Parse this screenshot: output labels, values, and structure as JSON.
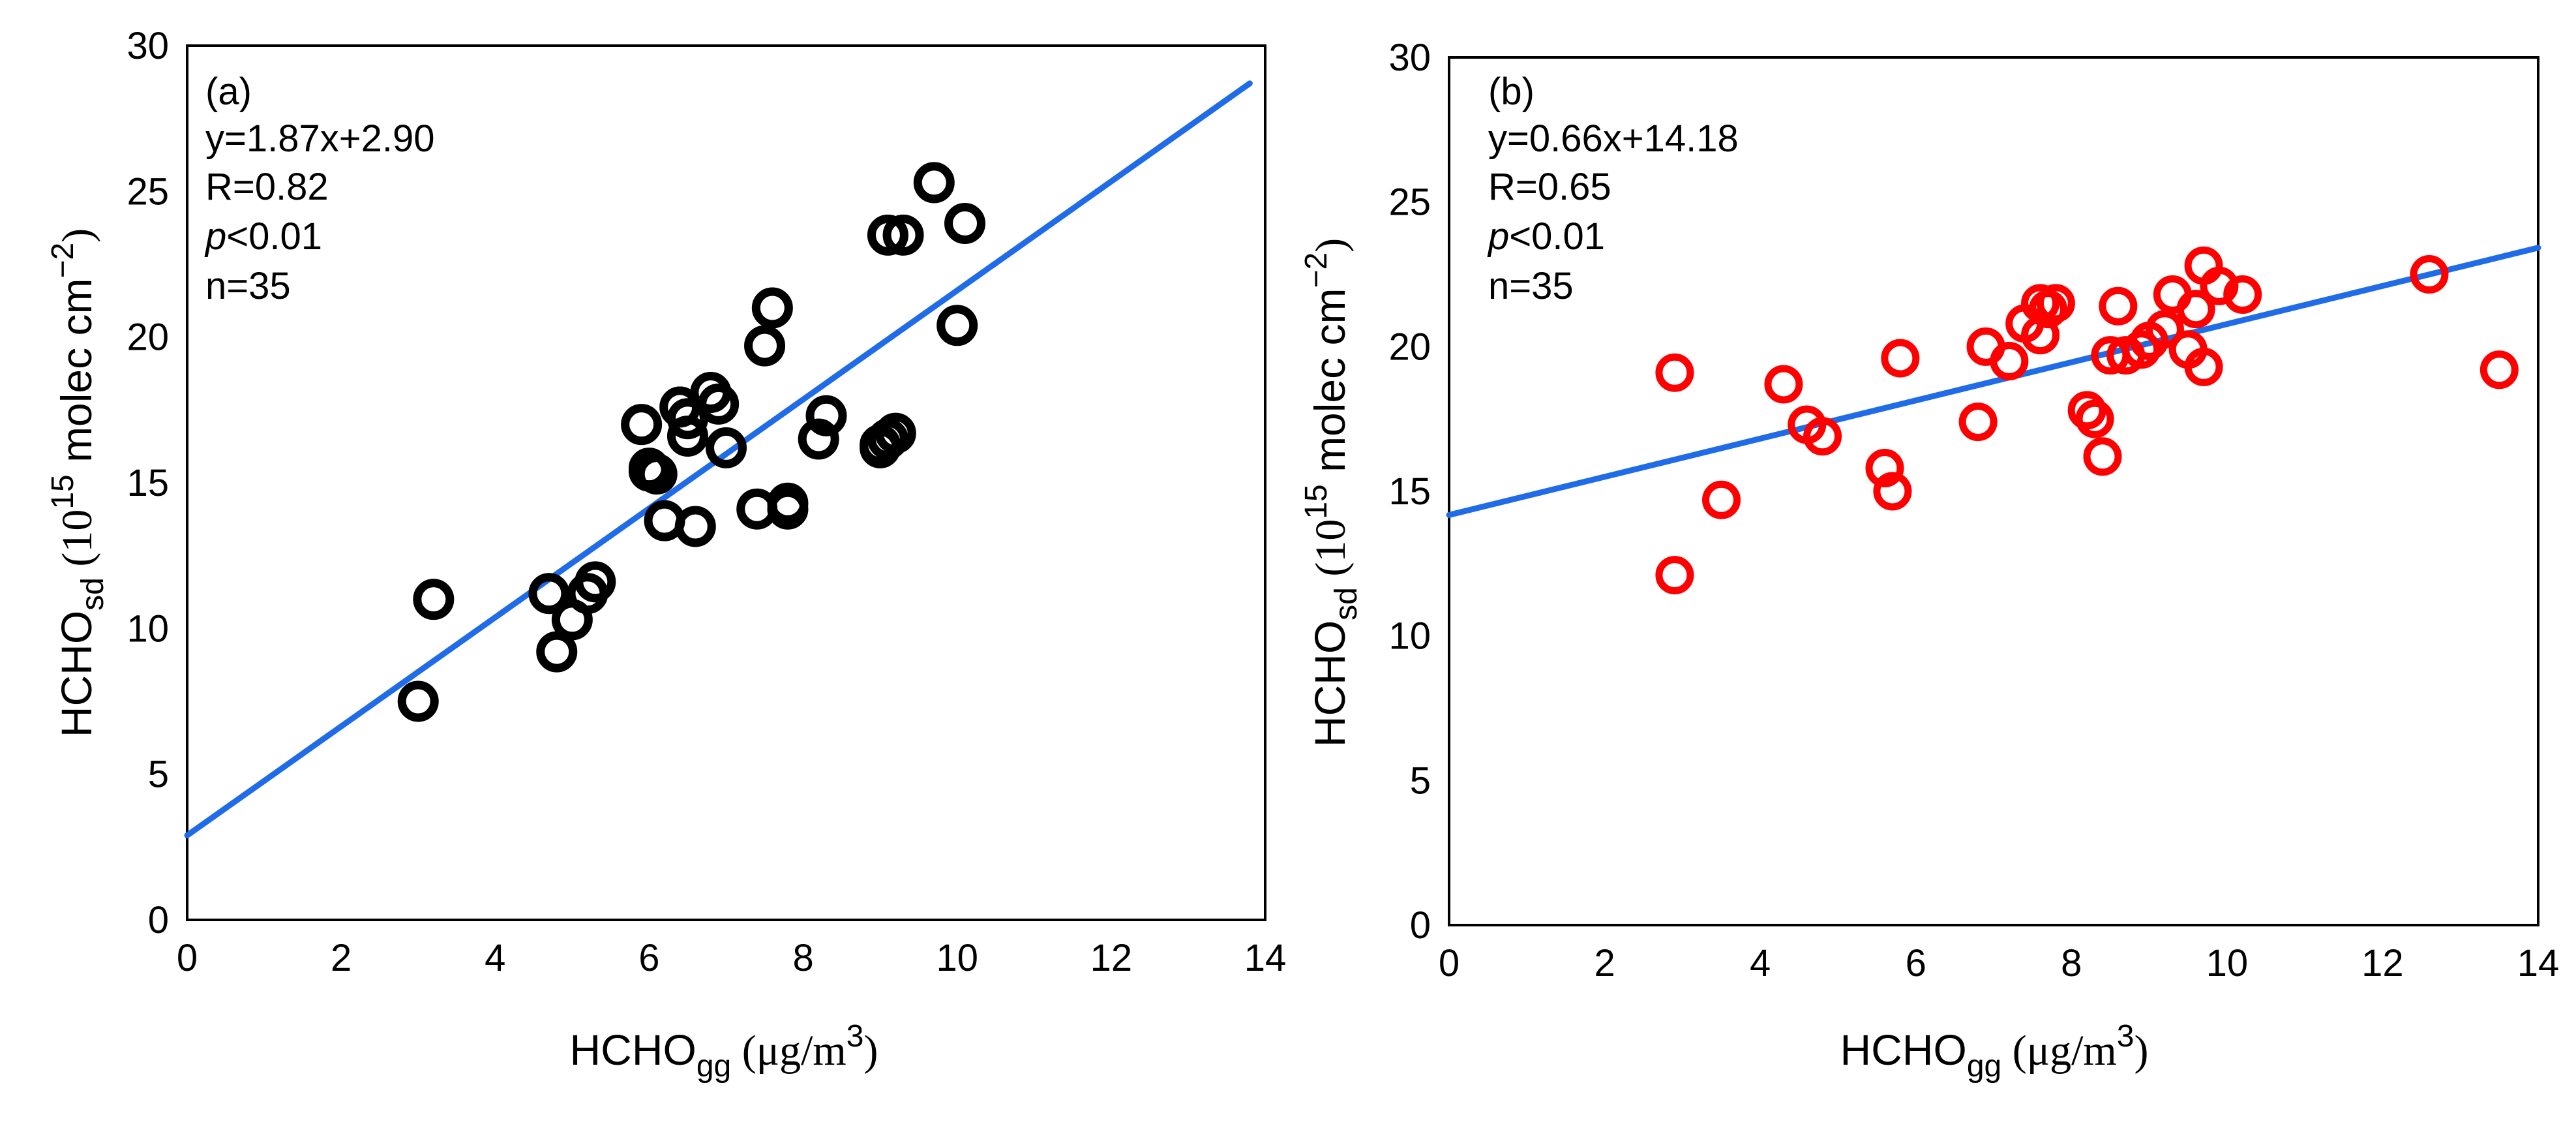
{
  "colors": {
    "background": "#ffffff",
    "axis": "#000000",
    "trendline": "#1f6be8",
    "markers_a": "#000000",
    "markers_b": "#ff0000"
  },
  "chart_data": [
    {
      "type": "scatter",
      "panel": "(a)",
      "equation": "y=1.87x+2.90",
      "r_text": "R=0.82",
      "p_italic": "p",
      "p_rest": "<0.01",
      "n_text": "n=35",
      "ylabel": {
        "main": "HCHO",
        "sub": "sd",
        "unit_open": " (10",
        "unit_sup": "15",
        "unit_mid": " molec cm",
        "unit_sup2": "−2",
        "unit_close": ")"
      },
      "xlabel": {
        "main": "HCHO",
        "sub": "gg",
        "unit_open": " (μg/m",
        "unit_sup": "3",
        "unit_close": ")"
      },
      "xlim": [
        0,
        14
      ],
      "ylim": [
        0,
        30
      ],
      "xticks": [
        0,
        2,
        4,
        6,
        8,
        10,
        12,
        14
      ],
      "yticks": [
        0,
        5,
        10,
        15,
        20,
        25,
        30
      ],
      "trendline": {
        "slope": 1.87,
        "intercept": 2.9,
        "x_range": [
          0,
          13.8
        ]
      },
      "marker_color": "#000000",
      "points": [
        [
          3.0,
          7.5
        ],
        [
          3.2,
          11.0
        ],
        [
          4.7,
          11.2
        ],
        [
          4.8,
          9.2
        ],
        [
          5.0,
          10.3
        ],
        [
          5.2,
          11.2
        ],
        [
          5.3,
          11.6
        ],
        [
          5.9,
          17.0
        ],
        [
          6.0,
          15.5
        ],
        [
          6.1,
          15.3
        ],
        [
          6.2,
          13.7
        ],
        [
          6.4,
          17.6
        ],
        [
          6.5,
          17.2
        ],
        [
          6.5,
          16.6
        ],
        [
          6.6,
          13.5
        ],
        [
          6.8,
          18.1
        ],
        [
          6.9,
          17.7
        ],
        [
          7.0,
          16.2
        ],
        [
          7.4,
          14.1
        ],
        [
          7.5,
          19.7
        ],
        [
          7.6,
          21.0
        ],
        [
          7.8,
          14.3
        ],
        [
          7.8,
          14.1
        ],
        [
          8.2,
          16.5
        ],
        [
          8.3,
          17.3
        ],
        [
          9.0,
          16.3
        ],
        [
          9.1,
          16.5
        ],
        [
          9.2,
          16.7
        ],
        [
          9.1,
          23.5
        ],
        [
          9.3,
          23.5
        ],
        [
          9.7,
          25.3
        ],
        [
          10.0,
          20.4
        ],
        [
          10.1,
          23.9
        ],
        [
          9.0,
          16.2
        ],
        [
          6.0,
          15.4
        ]
      ]
    },
    {
      "type": "scatter",
      "panel": "(b)",
      "equation": "y=0.66x+14.18",
      "r_text": "R=0.65",
      "p_italic": "p",
      "p_rest": "<0.01",
      "n_text": "n=35",
      "ylabel": {
        "main": "HCHO",
        "sub": "sd",
        "unit_open": " (10",
        "unit_sup": "15",
        "unit_mid": " molec cm",
        "unit_sup2": "−2",
        "unit_close": ")"
      },
      "xlabel": {
        "main": "HCHO",
        "sub": "gg",
        "unit_open": " (μg/m",
        "unit_sup": "3",
        "unit_close": ")"
      },
      "xlim": [
        0,
        14
      ],
      "ylim": [
        0,
        30
      ],
      "xticks": [
        0,
        2,
        4,
        6,
        8,
        10,
        12,
        14
      ],
      "yticks": [
        0,
        5,
        10,
        15,
        20,
        25,
        30
      ],
      "trendline": {
        "slope": 0.66,
        "intercept": 14.18,
        "x_range": [
          0,
          14
        ]
      },
      "marker_color": "#ff0000",
      "points": [
        [
          2.9,
          12.1
        ],
        [
          2.9,
          19.1
        ],
        [
          3.5,
          14.7
        ],
        [
          4.3,
          18.7
        ],
        [
          4.6,
          17.3
        ],
        [
          4.8,
          16.9
        ],
        [
          5.6,
          15.8
        ],
        [
          5.7,
          15.0
        ],
        [
          5.8,
          19.6
        ],
        [
          6.8,
          17.4
        ],
        [
          6.9,
          20.0
        ],
        [
          7.2,
          19.5
        ],
        [
          7.4,
          20.8
        ],
        [
          7.6,
          20.4
        ],
        [
          7.6,
          21.5
        ],
        [
          7.7,
          21.3
        ],
        [
          7.8,
          21.5
        ],
        [
          8.2,
          17.8
        ],
        [
          8.3,
          17.5
        ],
        [
          8.4,
          16.2
        ],
        [
          8.5,
          19.7
        ],
        [
          8.6,
          21.4
        ],
        [
          8.7,
          19.7
        ],
        [
          8.9,
          19.9
        ],
        [
          9.0,
          20.2
        ],
        [
          9.2,
          20.6
        ],
        [
          9.3,
          21.8
        ],
        [
          9.5,
          19.9
        ],
        [
          9.6,
          21.3
        ],
        [
          9.7,
          19.3
        ],
        [
          9.7,
          22.8
        ],
        [
          9.9,
          22.1
        ],
        [
          10.2,
          21.8
        ],
        [
          12.6,
          22.5
        ],
        [
          13.5,
          19.2
        ]
      ]
    }
  ]
}
